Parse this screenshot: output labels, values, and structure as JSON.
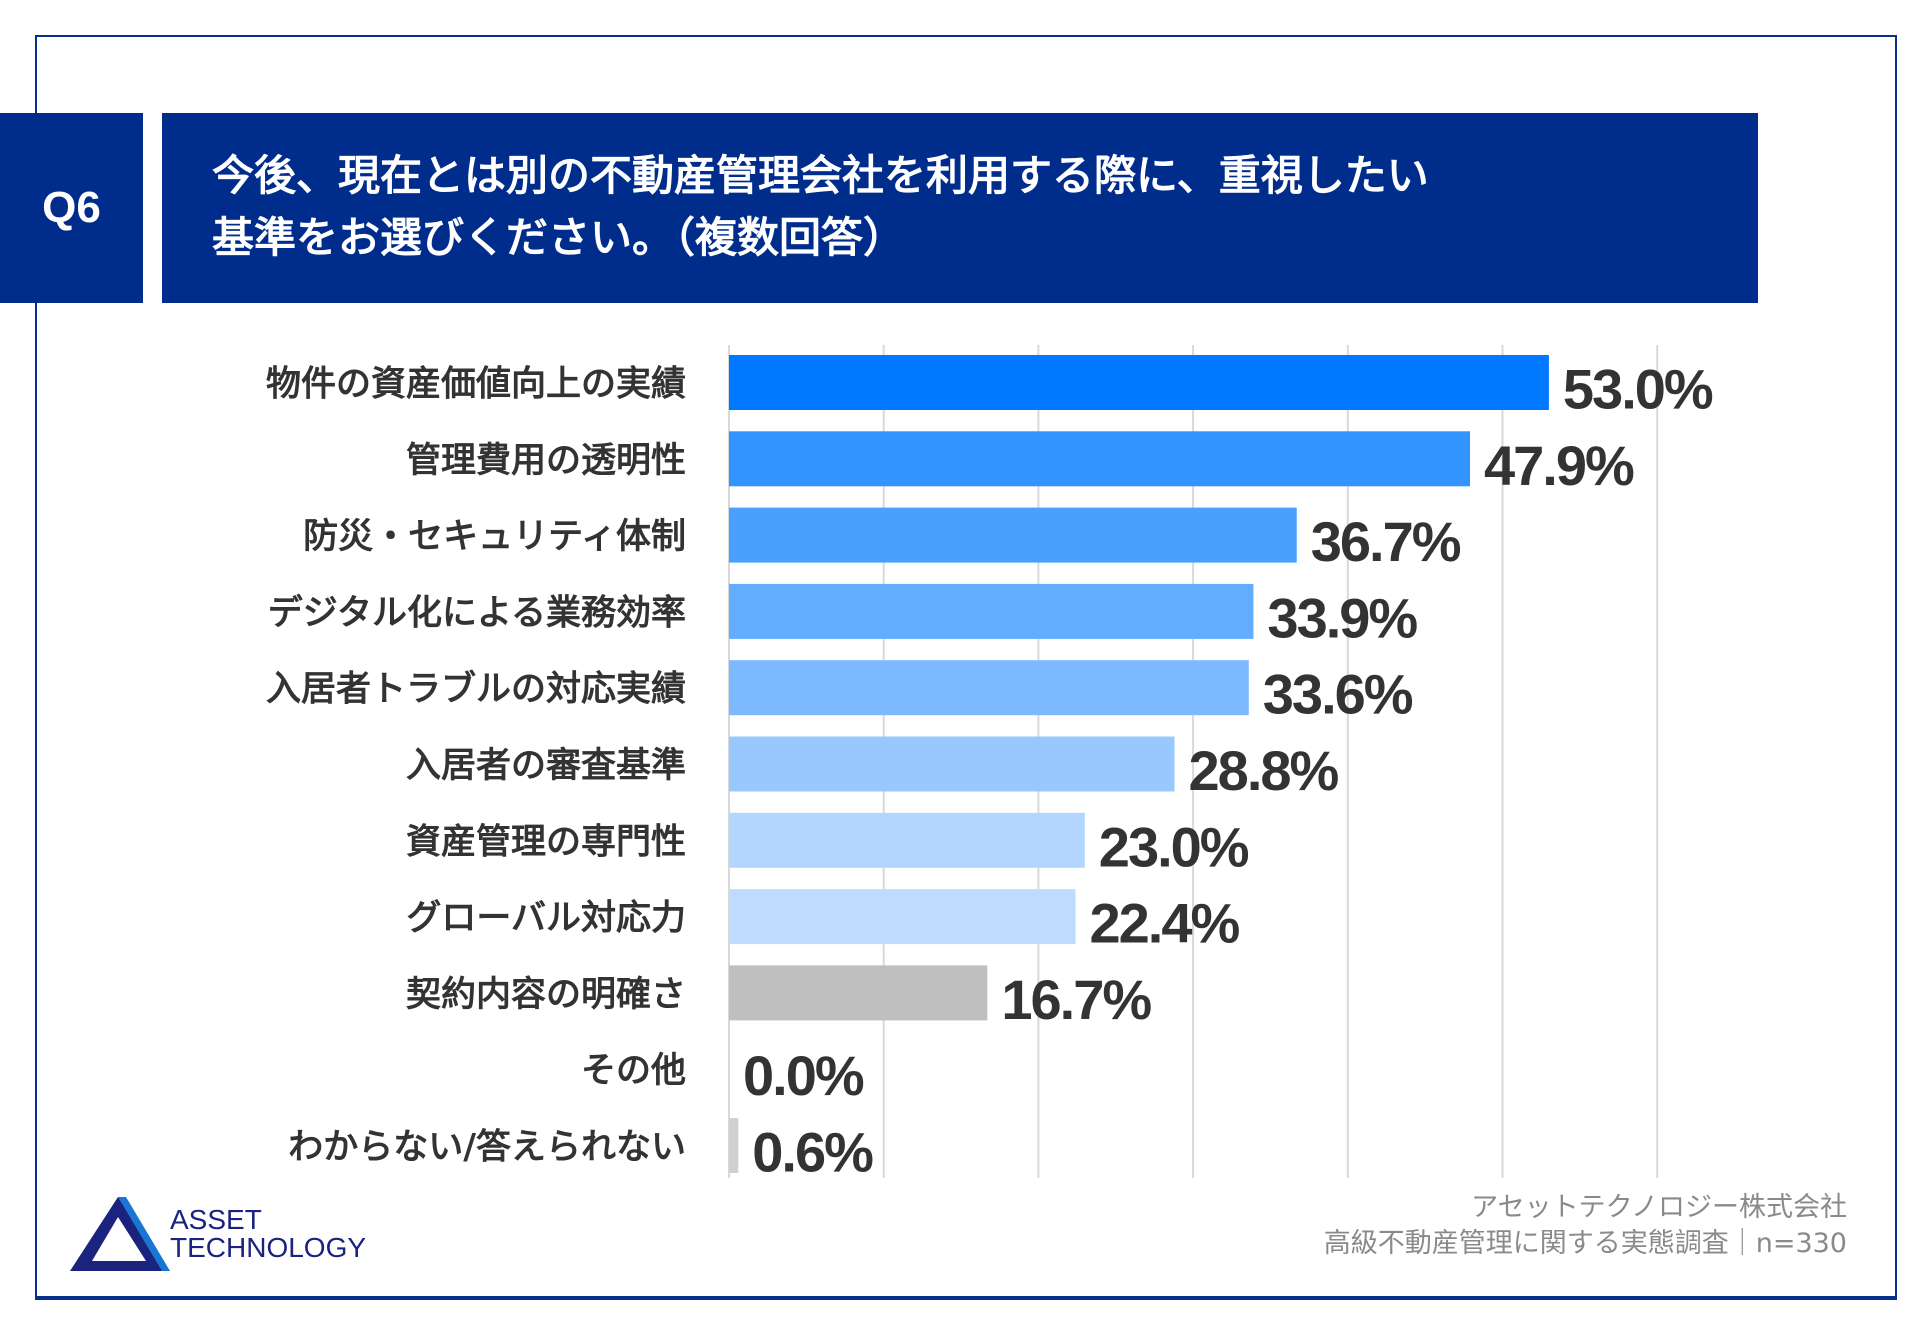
{
  "header": {
    "q": "Q6",
    "title_line1": "今後、現在とは別の不動産管理会社を利用する際に、重視したい",
    "title_line2": "基準をお選びください。（複数回答）"
  },
  "chart_data": {
    "type": "bar",
    "orientation": "horizontal",
    "title": "今後、現在とは別の不動産管理会社を利用する際に、重視したい基準をお選びください。（複数回答）",
    "categories": [
      "物件の資産価値向上の実績",
      "管理費用の透明性",
      "防災・セキュリティ体制",
      "デジタル化による業務効率",
      "入居者トラブルの対応実績",
      "入居者の審査基準",
      "資産管理の専門性",
      "グローバル対応力",
      "契約内容の明確さ",
      "その他",
      "わからない/答えられない"
    ],
    "values": [
      53.0,
      47.9,
      36.7,
      33.9,
      33.6,
      28.8,
      23.0,
      22.4,
      16.7,
      0.0,
      0.6
    ],
    "labels": [
      "53.0%",
      "47.9%",
      "36.7%",
      "33.9%",
      "33.6%",
      "28.8%",
      "23.0%",
      "22.4%",
      "16.7%",
      "0.0%",
      "0.6%"
    ],
    "colors": [
      "#0078ff",
      "#3393ff",
      "#4a9fff",
      "#63adff",
      "#7db9ff",
      "#99c8ff",
      "#b3d6ff",
      "#bedcff",
      "#bfbfbf",
      "#bfbfbf",
      "#d0d0d0"
    ],
    "xlim": [
      0,
      60
    ],
    "grid": true,
    "grid_step": 10
  },
  "footer": {
    "company": "アセットテクノロジー株式会社",
    "survey": "高級不動産管理に関する実態調査｜n=330"
  },
  "logo": {
    "text1": "ASSET",
    "text2": "TECHNOLOGY"
  }
}
